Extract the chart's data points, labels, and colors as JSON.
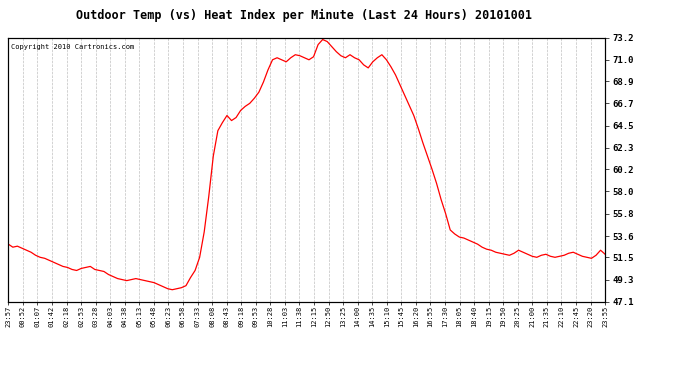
{
  "title": "Outdoor Temp (vs) Heat Index per Minute (Last 24 Hours) 20101001",
  "copyright": "Copyright 2010 Cartronics.com",
  "line_color": "#ff0000",
  "bg_color": "#ffffff",
  "plot_bg_color": "#ffffff",
  "grid_color": "#b0b0b0",
  "yticks": [
    47.1,
    49.3,
    51.5,
    53.6,
    55.8,
    58.0,
    60.2,
    62.3,
    64.5,
    66.7,
    68.9,
    71.0,
    73.2
  ],
  "xtick_labels": [
    "23:57",
    "00:52",
    "01:07",
    "01:42",
    "02:18",
    "02:53",
    "03:28",
    "04:03",
    "04:38",
    "05:13",
    "05:48",
    "06:23",
    "06:58",
    "07:33",
    "08:08",
    "08:43",
    "09:18",
    "09:53",
    "10:28",
    "11:03",
    "11:38",
    "12:15",
    "12:50",
    "13:25",
    "14:00",
    "14:35",
    "15:10",
    "15:45",
    "16:20",
    "16:55",
    "17:30",
    "18:05",
    "18:40",
    "19:15",
    "19:50",
    "20:25",
    "21:00",
    "21:35",
    "22:10",
    "22:45",
    "23:20",
    "23:55"
  ],
  "ymin": 47.1,
  "ymax": 73.2,
  "data_y": [
    52.8,
    52.5,
    52.6,
    52.4,
    52.2,
    52.0,
    51.7,
    51.5,
    51.4,
    51.2,
    51.0,
    50.8,
    50.6,
    50.5,
    50.3,
    50.2,
    50.4,
    50.5,
    50.6,
    50.3,
    50.2,
    50.1,
    49.8,
    49.6,
    49.4,
    49.3,
    49.2,
    49.3,
    49.4,
    49.3,
    49.2,
    49.1,
    49.0,
    48.8,
    48.6,
    48.4,
    48.3,
    48.4,
    48.5,
    48.7,
    49.5,
    50.2,
    51.5,
    54.0,
    57.5,
    61.5,
    64.0,
    64.8,
    65.5,
    65.0,
    65.3,
    66.0,
    66.4,
    66.7,
    67.2,
    67.8,
    68.8,
    70.0,
    71.0,
    71.2,
    71.0,
    70.8,
    71.2,
    71.5,
    71.4,
    71.2,
    71.0,
    71.3,
    72.5,
    73.0,
    72.8,
    72.3,
    71.8,
    71.4,
    71.2,
    71.5,
    71.2,
    71.0,
    70.5,
    70.2,
    70.8,
    71.2,
    71.5,
    71.0,
    70.3,
    69.5,
    68.5,
    67.5,
    66.5,
    65.5,
    64.2,
    62.8,
    61.5,
    60.2,
    58.8,
    57.2,
    55.8,
    54.2,
    53.8,
    53.5,
    53.4,
    53.2,
    53.0,
    52.8,
    52.5,
    52.3,
    52.2,
    52.0,
    51.9,
    51.8,
    51.7,
    51.9,
    52.2,
    52.0,
    51.8,
    51.6,
    51.5,
    51.7,
    51.8,
    51.6,
    51.5,
    51.6,
    51.7,
    51.9,
    52.0,
    51.8,
    51.6,
    51.5,
    51.4,
    51.7,
    52.2,
    51.8
  ]
}
